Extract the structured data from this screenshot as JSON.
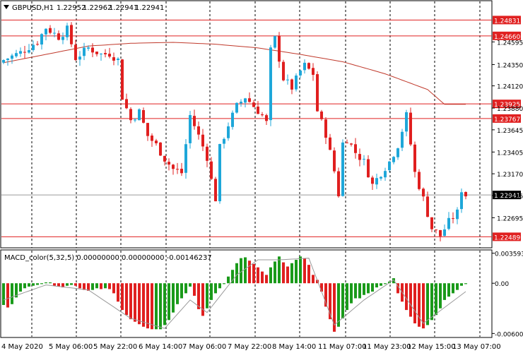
{
  "chart_data": [
    {
      "type": "candlestick",
      "symbol_label": "GBPUSD,H1",
      "ohlc_header": [
        "1.22952",
        "1.22962",
        "1.22941",
        "1.22941"
      ],
      "ylim": [
        1.2237,
        1.2504
      ],
      "y_ticks": [
        "1.24595",
        "1.24350",
        "1.24120",
        "1.23880",
        "1.23645",
        "1.23405",
        "1.23170",
        "1.22935",
        "1.22695"
      ],
      "x_ticks": [
        "4 May 2020",
        "5 May 06:00",
        "5 May 22:00",
        "6 May 14:00",
        "7 May 06:00",
        "7 May 22:00",
        "8 May 14:00",
        "11 May 07:00",
        "11 May 23:00",
        "12 May 15:00",
        "13 May 07:00"
      ],
      "horizontal_levels": [
        {
          "value": 1.24831,
          "label": "1.24831",
          "style": "red"
        },
        {
          "value": 1.2466,
          "label": "1.24660",
          "style": "red"
        },
        {
          "value": 1.23925,
          "label": "1.23925",
          "style": "red"
        },
        {
          "value": 1.23767,
          "label": "1.23767",
          "style": "red"
        },
        {
          "value": 1.22941,
          "label": "1.22941",
          "style": "current"
        },
        {
          "value": 1.22489,
          "label": "1.22489",
          "style": "red"
        }
      ],
      "close_path": [
        [
          0,
          1.244
        ],
        [
          4,
          1.2448
        ],
        [
          8,
          1.246
        ],
        [
          10,
          1.2475
        ],
        [
          13,
          1.2465
        ],
        [
          15,
          1.2473
        ],
        [
          17,
          1.2442
        ],
        [
          20,
          1.2453
        ],
        [
          23,
          1.2446
        ],
        [
          25,
          1.2447
        ],
        [
          27,
          1.244
        ],
        [
          28,
          1.24
        ],
        [
          30,
          1.2375
        ],
        [
          32,
          1.2384
        ],
        [
          34,
          1.2358
        ],
        [
          36,
          1.2348
        ],
        [
          38,
          1.2333
        ],
        [
          40,
          1.2322
        ],
        [
          42,
          1.2318
        ],
        [
          44,
          1.238
        ],
        [
          46,
          1.2358
        ],
        [
          48,
          1.2335
        ],
        [
          49,
          1.231
        ],
        [
          50,
          1.229
        ],
        [
          51,
          1.2345
        ],
        [
          53,
          1.237
        ],
        [
          55,
          1.239
        ],
        [
          57,
          1.24
        ],
        [
          59,
          1.239
        ],
        [
          61,
          1.238
        ],
        [
          62,
          1.2372
        ],
        [
          63,
          1.245
        ],
        [
          64,
          1.2463
        ],
        [
          66,
          1.242
        ],
        [
          68,
          1.241
        ],
        [
          70,
          1.2428
        ],
        [
          71,
          1.2434
        ],
        [
          73,
          1.2425
        ],
        [
          74,
          1.2385
        ],
        [
          76,
          1.236
        ],
        [
          78,
          1.232
        ],
        [
          79,
          1.2295
        ],
        [
          80,
          1.235
        ],
        [
          81,
          1.2355
        ],
        [
          83,
          1.234
        ],
        [
          85,
          1.233
        ],
        [
          87,
          1.2305
        ],
        [
          89,
          1.2318
        ],
        [
          91,
          1.233
        ],
        [
          93,
          1.2348
        ],
        [
          95,
          1.238
        ],
        [
          97,
          1.2318
        ],
        [
          99,
          1.229
        ],
        [
          101,
          1.2258
        ],
        [
          103,
          1.225
        ],
        [
          105,
          1.2265
        ],
        [
          107,
          1.2275
        ],
        [
          108,
          1.23
        ],
        [
          109,
          1.2294
        ]
      ],
      "moving_average": [
        [
          0,
          1.2437
        ],
        [
          10,
          1.2446
        ],
        [
          20,
          1.2455
        ],
        [
          30,
          1.2458
        ],
        [
          40,
          1.2459
        ],
        [
          50,
          1.2457
        ],
        [
          60,
          1.2453
        ],
        [
          70,
          1.2446
        ],
        [
          80,
          1.2438
        ],
        [
          90,
          1.2425
        ],
        [
          100,
          1.2408
        ],
        [
          104,
          1.2392
        ],
        [
          109,
          1.2392
        ]
      ],
      "colors": {
        "up": "#1ea7d9",
        "down": "#e01f1f",
        "ma": "#c0392b",
        "level": "#e02020",
        "grid": "#000000"
      }
    },
    {
      "type": "bar",
      "title": "MACD_color(5,32,5) 0.00000000 0.00000000 -0.00146237",
      "y_ticks": [
        "0.0035936",
        "0.00",
        "-0.006007"
      ],
      "ylim": [
        -0.0064,
        0.0039
      ],
      "histogram": [
        -0.0026,
        -0.0029,
        -0.0025,
        -0.0017,
        -0.001,
        -0.0006,
        -0.0004,
        -0.0003,
        -0.0002,
        -0.0001,
        0.0001,
        0.0001,
        -0.0003,
        -0.0004,
        -0.0005,
        -0.0003,
        -0.0002,
        -0.0003,
        -0.0006,
        -0.0008,
        -0.0009,
        -0.0008,
        -0.0006,
        -0.0007,
        -0.0006,
        -0.0007,
        -0.0012,
        -0.0022,
        -0.0032,
        -0.0038,
        -0.0043,
        -0.0046,
        -0.0049,
        -0.0052,
        -0.0054,
        -0.0055,
        -0.0055,
        -0.0055,
        -0.005,
        -0.0044,
        -0.0035,
        -0.0025,
        -0.0018,
        -0.0012,
        -0.0004,
        -0.0015,
        -0.0031,
        -0.0039,
        -0.003,
        -0.002,
        -0.0012,
        -0.0006,
        -0.0001,
        0.0008,
        0.0016,
        0.0024,
        0.003,
        0.0031,
        0.0027,
        0.0023,
        0.0019,
        0.0014,
        0.001,
        0.0019,
        0.0026,
        0.0032,
        0.0025,
        0.002,
        0.0024,
        0.0028,
        0.0032,
        0.003,
        0.0022,
        0.001,
        0.0004,
        -0.001,
        -0.0028,
        -0.0043,
        -0.0058,
        -0.0052,
        -0.0042,
        -0.0032,
        -0.0024,
        -0.0018,
        -0.0018,
        -0.0014,
        -0.0012,
        -0.001,
        -0.0005,
        -0.0003,
        -0.0001,
        0.0002,
        0.0006,
        -0.0012,
        -0.0022,
        -0.0032,
        -0.004,
        -0.0048,
        -0.0052,
        -0.0054,
        -0.005,
        -0.0044,
        -0.0038,
        -0.003,
        -0.002,
        -0.0016,
        -0.0012,
        -0.0008,
        -0.0003,
        -0.0001
      ],
      "signal_line": [
        [
          0,
          -0.002
        ],
        [
          10,
          -0.0002
        ],
        [
          20,
          -0.0008
        ],
        [
          30,
          -0.0042
        ],
        [
          38,
          -0.0054
        ],
        [
          44,
          -0.002
        ],
        [
          48,
          -0.0035
        ],
        [
          55,
          0.001
        ],
        [
          60,
          0.0028
        ],
        [
          65,
          0.0028
        ],
        [
          72,
          0.003
        ],
        [
          78,
          -0.005
        ],
        [
          85,
          -0.002
        ],
        [
          92,
          0.0004
        ],
        [
          99,
          -0.0048
        ],
        [
          109,
          -0.001
        ]
      ]
    }
  ]
}
